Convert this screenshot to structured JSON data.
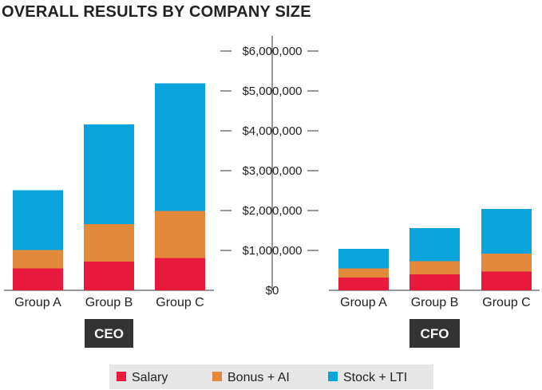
{
  "title": "OVERALL RESULTS BY COMPANY SIZE",
  "colors": {
    "salary": "#e8193c",
    "bonus": "#e2893b",
    "stock": "#0ba3dc",
    "axis": "#333333",
    "group_box": "#333333",
    "legend_bg": "#e6e6e6"
  },
  "chart_data": [
    {
      "type": "bar",
      "stacked": true,
      "group_label": "CEO",
      "categories": [
        "Group A",
        "Group B",
        "Group C"
      ],
      "series": [
        {
          "name": "Salary",
          "values": [
            550000,
            720000,
            810000
          ]
        },
        {
          "name": "Bonus + AI",
          "values": [
            460000,
            940000,
            1180000
          ]
        },
        {
          "name": "Stock + LTI",
          "values": [
            1500000,
            2500000,
            3200000
          ]
        }
      ],
      "ylim": [
        0,
        6500000
      ]
    },
    {
      "type": "bar",
      "stacked": true,
      "group_label": "CFO",
      "categories": [
        "Group A",
        "Group B",
        "Group C"
      ],
      "series": [
        {
          "name": "Salary",
          "values": [
            320000,
            400000,
            470000
          ]
        },
        {
          "name": "Bonus + AI",
          "values": [
            230000,
            330000,
            450000
          ]
        },
        {
          "name": "Stock + LTI",
          "values": [
            490000,
            830000,
            1120000
          ]
        }
      ],
      "ylim": [
        0,
        6500000
      ]
    }
  ],
  "y_axis": {
    "ticks": [
      0,
      1000000,
      2000000,
      3000000,
      4000000,
      5000000,
      6000000
    ],
    "tick_labels": [
      "$0",
      "$1,000,000",
      "$2,000,000",
      "$3,000,000",
      "$4,000,000",
      "$5,000,000",
      "$6,000,000"
    ]
  },
  "legend": {
    "items": [
      {
        "label": "Salary",
        "color_key": "salary"
      },
      {
        "label": "Bonus + AI",
        "color_key": "bonus"
      },
      {
        "label": "Stock + LTI",
        "color_key": "stock"
      }
    ]
  }
}
